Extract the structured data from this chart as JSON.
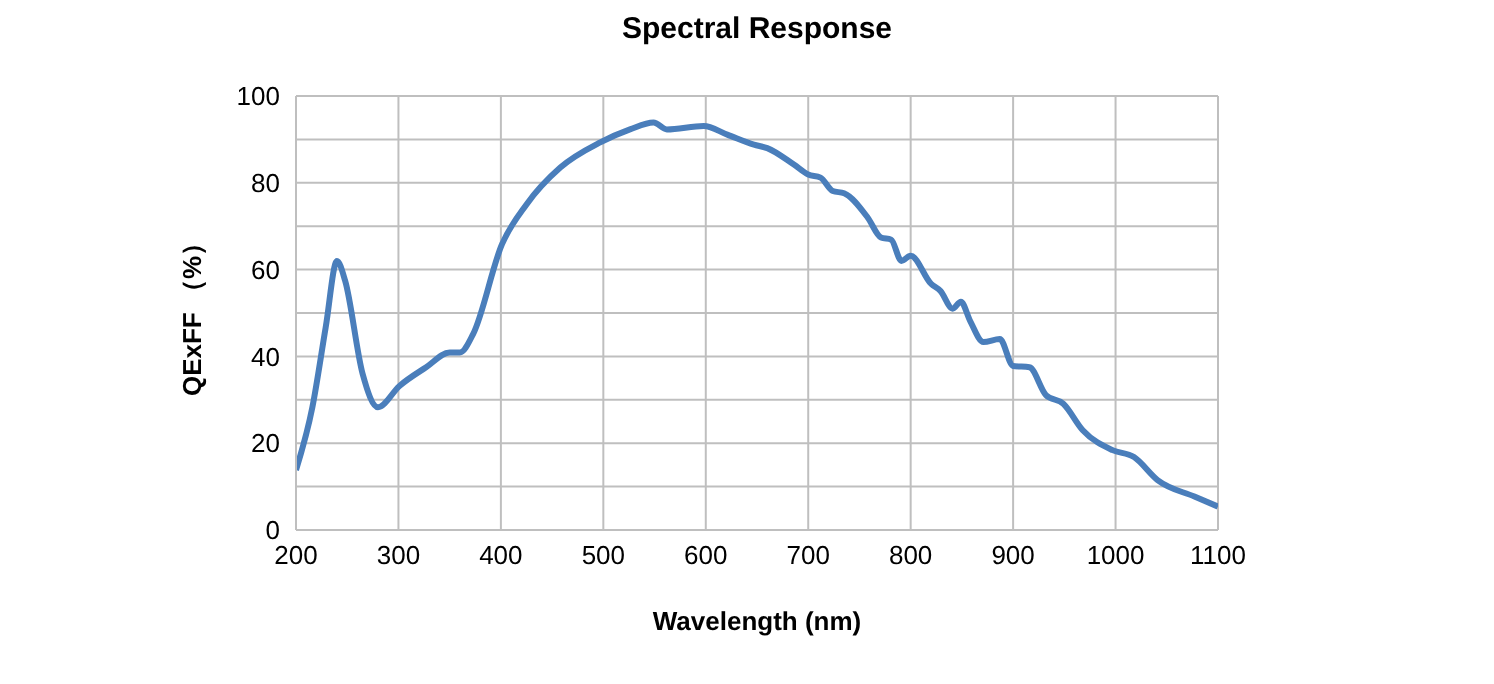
{
  "chart_data": {
    "type": "line",
    "title": "Spectral Response",
    "xlabel": "Wavelength (nm)",
    "ylabel": "QExFF （%）",
    "x": [
      200,
      216,
      229,
      240,
      248,
      265,
      280,
      301,
      327,
      350,
      360,
      373,
      401,
      425,
      458,
      497,
      526,
      549,
      562,
      598,
      621,
      647,
      660,
      686,
      700,
      712,
      724,
      735,
      758,
      771,
      781,
      791,
      800,
      820,
      829,
      841,
      849,
      858,
      871,
      887,
      900,
      916,
      932,
      949,
      968,
      997,
      1018,
      1041,
      1077,
      1100
    ],
    "series": [
      {
        "color": "#4a7ebb",
        "values": [
          13.8,
          28.3,
          46.7,
          62,
          57.4,
          36,
          28.3,
          33.2,
          37.5,
          40.9,
          40.9,
          45.2,
          65.8,
          75,
          83.5,
          89.3,
          92.3,
          93.9,
          92.3,
          93.1,
          91.1,
          88.8,
          88,
          84.2,
          81.9,
          81.2,
          78.1,
          77.6,
          72,
          67.4,
          66.9,
          62,
          63.2,
          56.7,
          55.1,
          51,
          52.6,
          48.2,
          43.3,
          44,
          37.8,
          37.5,
          31.1,
          29.1,
          23,
          18.4,
          16.8,
          11.5,
          7.7,
          5.4
        ]
      }
    ],
    "xlim": [
      200,
      1100
    ],
    "xticks": [
      200,
      300,
      400,
      500,
      600,
      700,
      800,
      900,
      1000,
      1100
    ],
    "ylim": [
      0,
      100
    ],
    "yticks": [
      0,
      {
        "value": 10,
        "label": null
      },
      20,
      {
        "value": 30,
        "label": null
      },
      40,
      {
        "value": 50,
        "label": null
      },
      60,
      {
        "value": 70,
        "label": null
      },
      80,
      {
        "value": 90,
        "label": null
      },
      100
    ],
    "grid": true,
    "legend": false,
    "marker": "none",
    "line_style": "solid"
  }
}
